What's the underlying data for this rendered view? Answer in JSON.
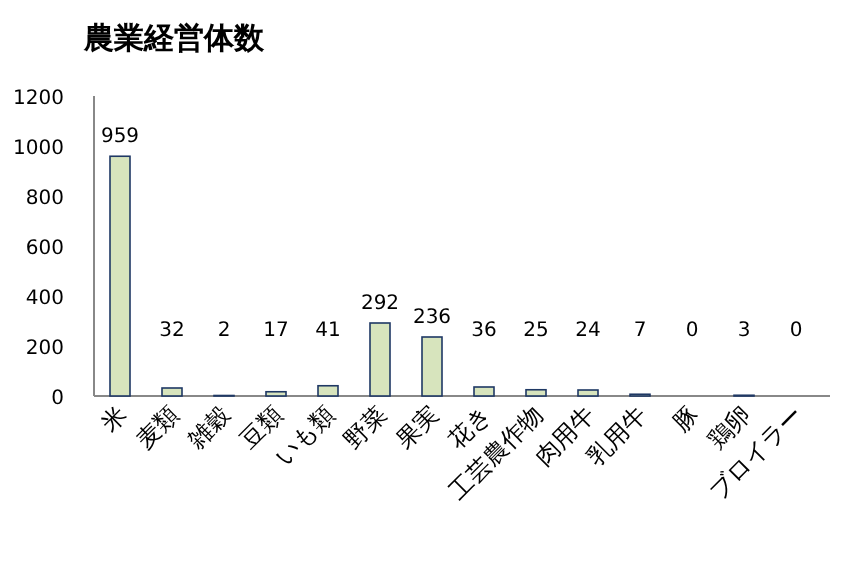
{
  "chart_data": {
    "type": "bar",
    "title": "農業経営体数",
    "categories": [
      "米",
      "麦類",
      "雑穀",
      "豆類",
      "いも類",
      "野菜",
      "果実",
      "花き",
      "工芸農作物",
      "肉用牛",
      "乳用牛",
      "豚",
      "鶏卵",
      "ブロイラー"
    ],
    "values": [
      959,
      32,
      2,
      17,
      41,
      292,
      236,
      36,
      25,
      24,
      7,
      0,
      3,
      0
    ],
    "color": "#d7e4bd",
    "ylim": [
      0,
      1200
    ],
    "yticks": [
      0,
      200,
      400,
      600,
      800,
      1000,
      1200
    ],
    "data_labels": true,
    "grid": false
  }
}
